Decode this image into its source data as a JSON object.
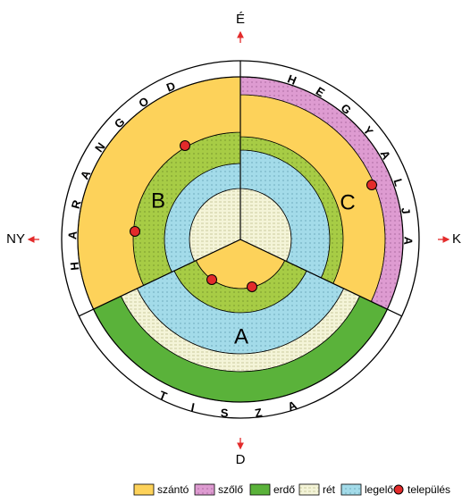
{
  "compass": {
    "north": "É",
    "south": "D",
    "west": "NY",
    "east": "K"
  },
  "regions": {
    "west": "HARANGOD",
    "east": "HEGYALJA",
    "south": "TISZA"
  },
  "sectors": {
    "bottom": "A",
    "left": "B",
    "right": "C"
  },
  "legend": [
    "szántó",
    "szőlő",
    "erdő",
    "rét",
    "legelő",
    "település"
  ]
}
